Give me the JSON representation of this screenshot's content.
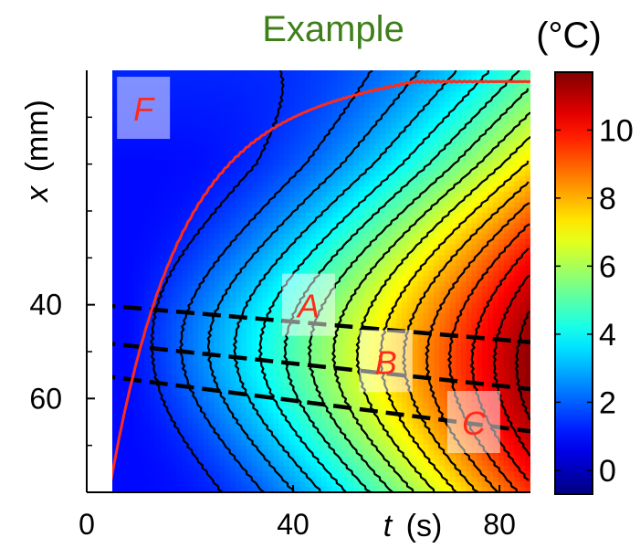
{
  "chart_data": {
    "type": "heatmap",
    "title": "Example",
    "title_color": "#3f7f1a",
    "xlabel_symbol": "t",
    "xlabel_unit": "(s)",
    "ylabel_symbol": "x",
    "ylabel_unit": "(mm)",
    "colorbar_label": "(°C)",
    "xlim": [
      0,
      86
    ],
    "ylim": [
      80,
      -10
    ],
    "x_ticks": [
      0,
      40,
      80
    ],
    "y_ticks": [
      40,
      60
    ],
    "colorbar_ticks": [
      0,
      2,
      4,
      6,
      8,
      10
    ],
    "colorbar_range": [
      -0.7,
      11.7
    ],
    "colormap": "jet",
    "contour_color": "#000000",
    "front_color": "#ff2a1a",
    "regions": [
      {
        "label": "F",
        "t": 11,
        "x": -2
      },
      {
        "label": "A",
        "t": 43,
        "x": 40
      },
      {
        "label": "B",
        "t": 58,
        "x": 52
      },
      {
        "label": "C",
        "t": 75,
        "x": 65
      }
    ],
    "region_label_color": "#ff2a1a"
  }
}
